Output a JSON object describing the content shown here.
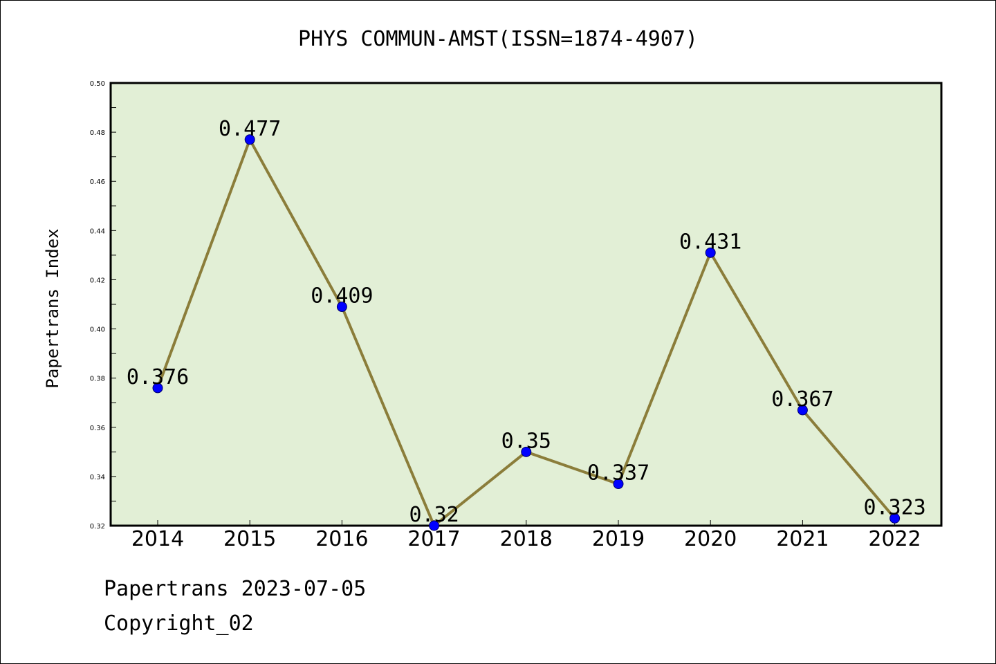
{
  "chart_data": {
    "type": "line",
    "title": "PHYS COMMUN-AMST(ISSN=1874-4907)",
    "xlabel": "",
    "ylabel": "Papertrans Index",
    "categories": [
      "2014",
      "2015",
      "2016",
      "2017",
      "2018",
      "2019",
      "2020",
      "2021",
      "2022"
    ],
    "series": [
      {
        "values": [
          0.376,
          0.477,
          0.409,
          0.32,
          0.35,
          0.337,
          0.431,
          0.367,
          0.323
        ],
        "data_labels": [
          "0.376",
          "0.477",
          "0.409",
          "0.32",
          "0.35",
          "0.337",
          "0.431",
          "0.367",
          "0.323"
        ],
        "line_color": "#8b7d3a",
        "marker_color": "#0000ff"
      }
    ],
    "ylim": [
      0.32,
      0.5
    ],
    "yticks": [
      "0.32",
      "0.34",
      "0.36",
      "0.38",
      "0.40",
      "0.42",
      "0.44",
      "0.46",
      "0.48",
      "0.50"
    ],
    "plot_background": "#e2efd6",
    "grid": false,
    "legend": "none"
  },
  "footer": {
    "date_line": "Papertrans 2023-07-05",
    "copyright": "Copyright_02"
  }
}
